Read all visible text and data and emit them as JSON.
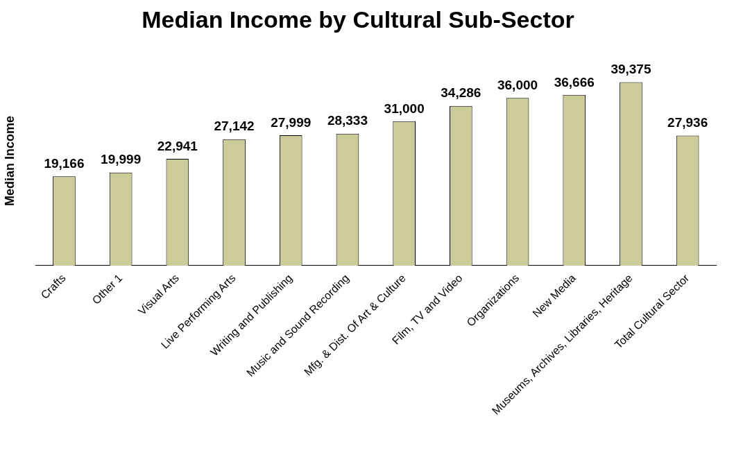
{
  "chart_data": {
    "type": "bar",
    "title": "Median Income by Cultural Sub-Sector",
    "ylabel": "Median Income",
    "categories": [
      "Crafts",
      "Other 1",
      "Visual Arts",
      "Live Performing Arts",
      "Writing and Publishing",
      "Music and Sound Recording",
      "Mfg. & Dist. Of Art & Culture",
      "Film, TV and Video",
      "Organizations",
      "New Media",
      "Museums, Archives, Libraries, Heritage",
      "Total Cultural Sector"
    ],
    "values": [
      19166,
      19999,
      22941,
      27142,
      27999,
      28333,
      31000,
      34286,
      36000,
      36666,
      39375,
      27936
    ],
    "value_labels": [
      "19,166",
      "19,999",
      "22,941",
      "27,142",
      "27,999",
      "28,333",
      "31,000",
      "34,286",
      "36,000",
      "36,666",
      "39,375",
      "27,936"
    ],
    "color": "#cccc99",
    "grid": false,
    "legend": false
  }
}
